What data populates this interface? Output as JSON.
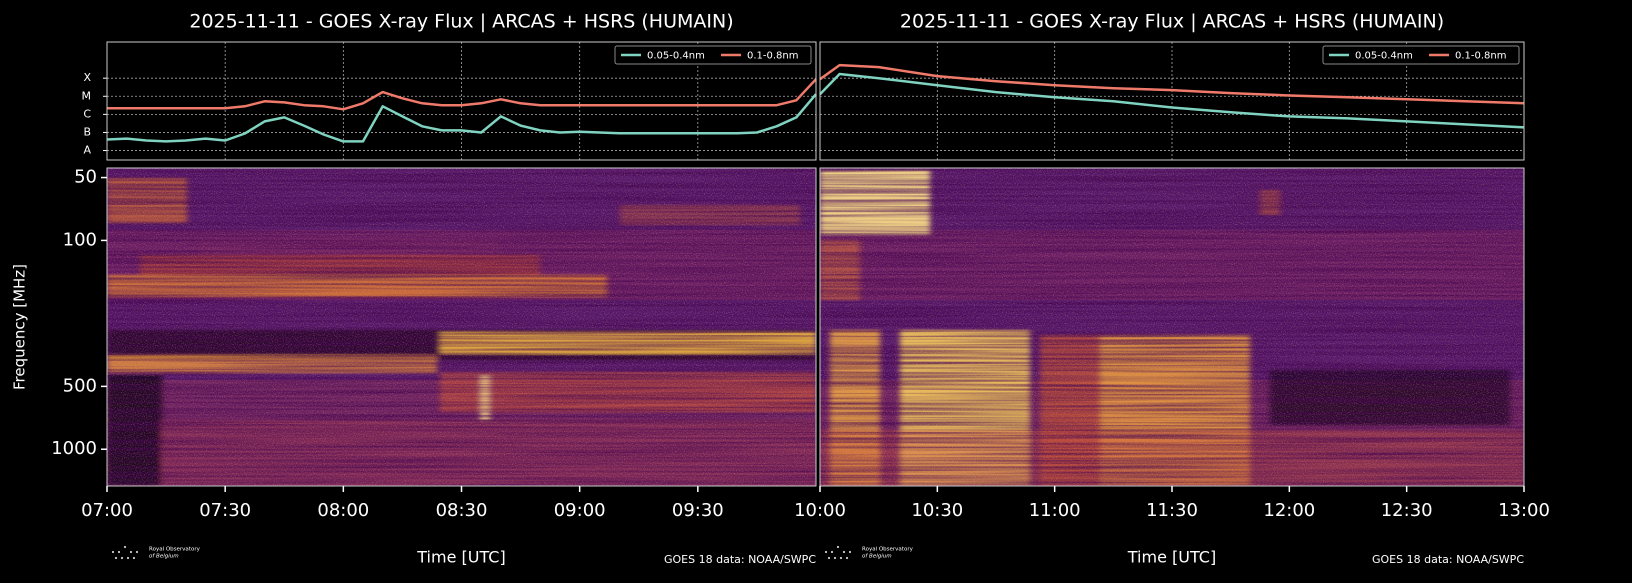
{
  "chart_data": [
    {
      "type": "line",
      "title": "2025-11-11 - GOES X-ray Flux | ARCAS + HSRS (HUMAIN)",
      "x": [
        "07:00",
        "07:05",
        "07:10",
        "07:15",
        "07:20",
        "07:25",
        "07:30",
        "07:35",
        "07:40",
        "07:45",
        "07:50",
        "07:55",
        "08:00",
        "08:05",
        "08:10",
        "08:15",
        "08:20",
        "08:25",
        "08:30",
        "08:35",
        "08:40",
        "08:45",
        "08:50",
        "08:55",
        "09:00",
        "09:05",
        "09:10",
        "09:15",
        "09:20",
        "09:25",
        "09:30",
        "09:35",
        "09:40",
        "09:45",
        "09:50",
        "09:55",
        "10:00"
      ],
      "xlim": [
        "07:00",
        "10:00"
      ],
      "series": [
        {
          "name": "0.05-0.4nm",
          "color": "#7fd3c0",
          "values": [
            4.1e-08,
            4.6e-08,
            3.6e-08,
            3.2e-08,
            3.6e-08,
            4.6e-08,
            3.6e-08,
            8.8e-08,
            4.1e-07,
            6.8e-07,
            2.4e-07,
            7.7e-08,
            3.2e-08,
            3.2e-08,
            2.8e-06,
            7.7e-07,
            2.2e-07,
            1.3e-07,
            1.3e-07,
            1e-07,
            7.7e-07,
            2.4e-07,
            1.3e-07,
            1e-07,
            1.1e-07,
            1e-07,
            9e-08,
            9e-08,
            9e-08,
            9e-08,
            9e-08,
            9e-08,
            9e-08,
            1e-07,
            2.2e-07,
            6.8e-07,
            1.3e-05
          ]
        },
        {
          "name": "0.1-0.8nm",
          "color": "#f07a6a",
          "values": [
            2.2e-06,
            2.2e-06,
            2.2e-06,
            2.2e-06,
            2.2e-06,
            2.2e-06,
            2.2e-06,
            2.8e-06,
            5.3e-06,
            4.6e-06,
            3.2e-06,
            2.8e-06,
            1.9e-06,
            4.1e-06,
            1.7e-05,
            7.7e-06,
            4.1e-06,
            3.2e-06,
            3.2e-06,
            4.1e-06,
            6.8e-06,
            4.1e-06,
            3.2e-06,
            3.2e-06,
            3.2e-06,
            3.2e-06,
            3.2e-06,
            3.2e-06,
            3.2e-06,
            3.2e-06,
            3.2e-06,
            3.2e-06,
            3.2e-06,
            3.2e-06,
            3.2e-06,
            6e-06,
            8.8e-05
          ]
        }
      ],
      "ylim": [
        3e-09,
        0.01
      ],
      "log_scale": true,
      "grid": true,
      "legend": "upper right",
      "yticks": [
        {
          "value": 1e-08,
          "label": "A"
        },
        {
          "value": 1e-07,
          "label": "B"
        },
        {
          "value": 1e-06,
          "label": "C"
        },
        {
          "value": 1e-05,
          "label": "M"
        },
        {
          "value": 0.0001,
          "label": "X"
        }
      ]
    },
    {
      "type": "spectrogram",
      "ylabel": "Frequency [MHz]",
      "xlabel": "Time [UTC]",
      "xlim": [
        "07:00",
        "10:00"
      ],
      "xticks": [
        "07:00",
        "07:30",
        "08:00",
        "08:30",
        "09:00",
        "09:30"
      ],
      "ylim": [
        45,
        1500
      ],
      "yticks": [
        50,
        100,
        500,
        1000
      ],
      "log_scale": true,
      "y_inverted": true,
      "logo": [
        "Royal Observatory",
        "of Belgium"
      ],
      "source": "GOES 18 data: NOAA/SWPC"
    },
    {
      "type": "line",
      "title": "2025-11-11 - GOES X-ray Flux | ARCAS + HSRS (HUMAIN)",
      "x": [
        "10:00",
        "10:05",
        "10:15",
        "10:30",
        "10:45",
        "11:00",
        "11:15",
        "11:30",
        "11:45",
        "12:00",
        "12:15",
        "12:30",
        "12:45",
        "13:00"
      ],
      "xlim": [
        "10:00",
        "13:00"
      ],
      "series": [
        {
          "name": "0.05-0.4nm",
          "color": "#7fd3c0",
          "values": [
            1.3e-05,
            0.00017,
            0.0001,
            4.1e-05,
            1.7e-05,
            8.8e-06,
            5.3e-06,
            2.4e-06,
            1.3e-06,
            7.7e-07,
            6e-07,
            4.1e-07,
            2.8e-07,
            1.9e-07
          ]
        },
        {
          "name": "0.1-0.8nm",
          "color": "#f07a6a",
          "values": [
            8.8e-05,
            0.00053,
            0.00041,
            0.00013,
            6.8e-05,
            4.1e-05,
            2.8e-05,
            2.2e-05,
            1.5e-05,
            1.1e-05,
            8.8e-06,
            6.8e-06,
            5.3e-06,
            4.1e-06
          ]
        }
      ],
      "ylim": [
        3e-09,
        0.01
      ],
      "log_scale": true,
      "grid": true,
      "legend": "upper right"
    },
    {
      "type": "spectrogram",
      "xlabel": "Time [UTC]",
      "xlim": [
        "10:00",
        "13:00"
      ],
      "xticks": [
        "10:00",
        "10:30",
        "11:00",
        "11:30",
        "12:00",
        "12:30",
        "13:00"
      ],
      "ylim": [
        45,
        1500
      ],
      "log_scale": true,
      "y_inverted": true,
      "logo": [
        "Royal Observatory",
        "of Belgium"
      ],
      "source": "GOES 18 data: NOAA/SWPC"
    }
  ]
}
